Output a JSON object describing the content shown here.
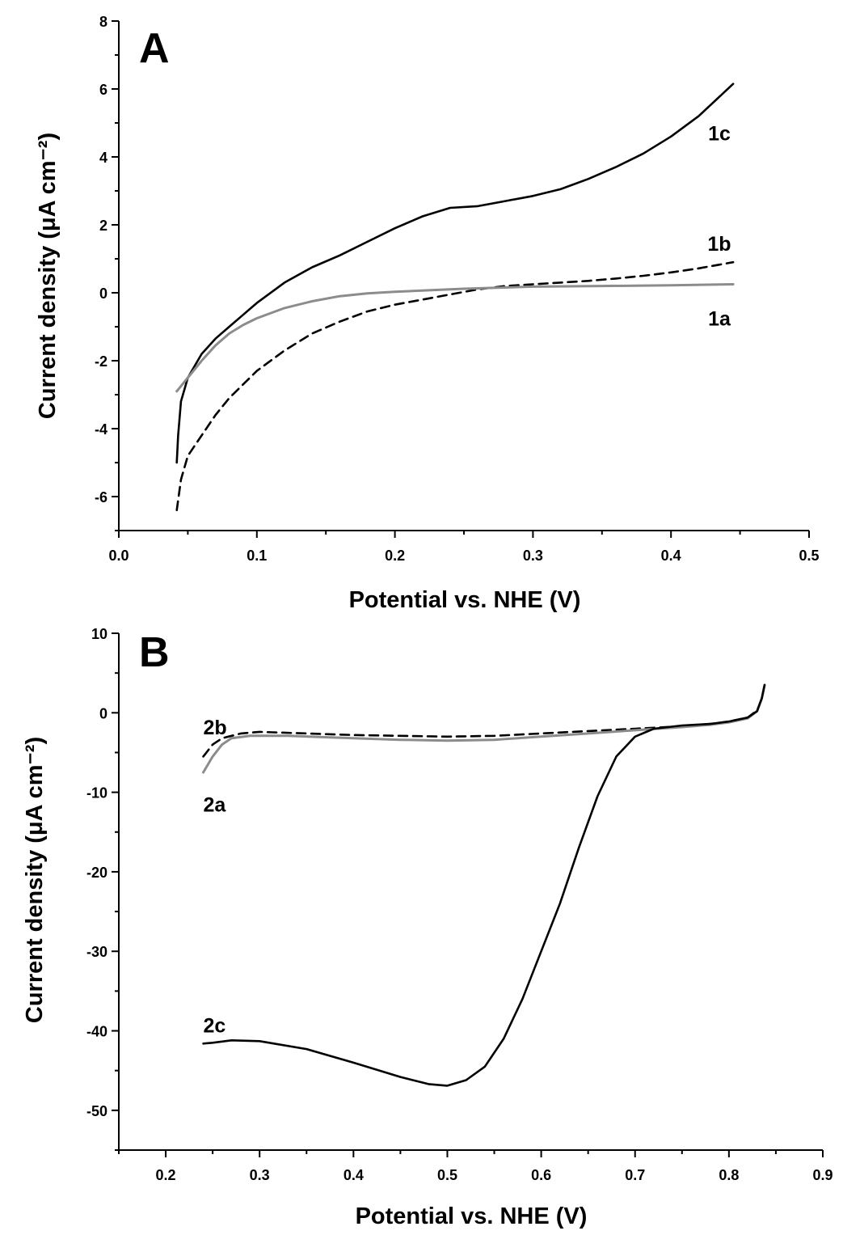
{
  "chart_data": [
    {
      "type": "line",
      "panel_label": "A",
      "xlabel": "Potential vs. NHE (V)",
      "ylabel": "Current density (μA cm⁻²)",
      "xlim": [
        0.0,
        0.5
      ],
      "ylim": [
        -7,
        8
      ],
      "xticks": [
        0.0,
        0.1,
        0.2,
        0.3,
        0.4,
        0.5
      ],
      "xtick_labels": [
        "0.0",
        "0.1",
        "0.2",
        "0.3",
        "0.4",
        "0.5"
      ],
      "yticks": [
        -6,
        -4,
        -2,
        0,
        2,
        4,
        6,
        8
      ],
      "ytick_labels": [
        "-6",
        "-4",
        "-2",
        "0",
        "2",
        "4",
        "6",
        "8"
      ],
      "grid": false,
      "series": [
        {
          "name": "1c",
          "color": "#000000",
          "style": "solid",
          "label_pos": [
            0.435,
            4.7
          ],
          "points": [
            [
              0.042,
              -5.0
            ],
            [
              0.043,
              -4.2
            ],
            [
              0.045,
              -3.2
            ],
            [
              0.05,
              -2.5
            ],
            [
              0.06,
              -1.8
            ],
            [
              0.07,
              -1.35
            ],
            [
              0.08,
              -1.0
            ],
            [
              0.09,
              -0.65
            ],
            [
              0.1,
              -0.3
            ],
            [
              0.12,
              0.3
            ],
            [
              0.14,
              0.75
            ],
            [
              0.16,
              1.1
            ],
            [
              0.18,
              1.5
            ],
            [
              0.2,
              1.9
            ],
            [
              0.22,
              2.25
            ],
            [
              0.24,
              2.5
            ],
            [
              0.26,
              2.55
            ],
            [
              0.28,
              2.7
            ],
            [
              0.3,
              2.85
            ],
            [
              0.32,
              3.05
            ],
            [
              0.34,
              3.35
            ],
            [
              0.36,
              3.7
            ],
            [
              0.38,
              4.1
            ],
            [
              0.4,
              4.6
            ],
            [
              0.42,
              5.2
            ],
            [
              0.445,
              6.15
            ]
          ]
        },
        {
          "name": "1b",
          "color": "#000000",
          "style": "dashed",
          "label_pos": [
            0.435,
            1.45
          ],
          "points": [
            [
              0.042,
              -6.4
            ],
            [
              0.045,
              -5.5
            ],
            [
              0.05,
              -4.8
            ],
            [
              0.06,
              -4.2
            ],
            [
              0.07,
              -3.6
            ],
            [
              0.08,
              -3.1
            ],
            [
              0.1,
              -2.3
            ],
            [
              0.12,
              -1.7
            ],
            [
              0.14,
              -1.2
            ],
            [
              0.16,
              -0.85
            ],
            [
              0.18,
              -0.55
            ],
            [
              0.2,
              -0.35
            ],
            [
              0.22,
              -0.2
            ],
            [
              0.24,
              -0.05
            ],
            [
              0.26,
              0.1
            ],
            [
              0.28,
              0.2
            ],
            [
              0.3,
              0.25
            ],
            [
              0.32,
              0.3
            ],
            [
              0.34,
              0.35
            ],
            [
              0.36,
              0.42
            ],
            [
              0.38,
              0.5
            ],
            [
              0.4,
              0.6
            ],
            [
              0.42,
              0.72
            ],
            [
              0.445,
              0.9
            ]
          ]
        },
        {
          "name": "1a",
          "color": "#8c8c8c",
          "style": "solid",
          "label_pos": [
            0.435,
            -0.75
          ],
          "points": [
            [
              0.042,
              -2.9
            ],
            [
              0.05,
              -2.5
            ],
            [
              0.06,
              -2.0
            ],
            [
              0.07,
              -1.55
            ],
            [
              0.08,
              -1.2
            ],
            [
              0.09,
              -0.95
            ],
            [
              0.1,
              -0.75
            ],
            [
              0.12,
              -0.45
            ],
            [
              0.14,
              -0.25
            ],
            [
              0.16,
              -0.1
            ],
            [
              0.18,
              -0.02
            ],
            [
              0.2,
              0.03
            ],
            [
              0.25,
              0.12
            ],
            [
              0.3,
              0.18
            ],
            [
              0.35,
              0.2
            ],
            [
              0.4,
              0.22
            ],
            [
              0.445,
              0.25
            ]
          ]
        }
      ]
    },
    {
      "type": "line",
      "panel_label": "B",
      "xlabel": "Potential vs. NHE (V)",
      "ylabel": "Current density (μA cm⁻²)",
      "xlim": [
        0.15,
        0.9
      ],
      "ylim": [
        -55,
        10
      ],
      "xticks": [
        0.2,
        0.3,
        0.4,
        0.5,
        0.6,
        0.7,
        0.8,
        0.9
      ],
      "xtick_labels": [
        "0.2",
        "0.3",
        "0.4",
        "0.5",
        "0.6",
        "0.7",
        "0.8",
        "0.9"
      ],
      "yticks": [
        -50,
        -40,
        -30,
        -20,
        -10,
        0,
        10
      ],
      "ytick_labels": [
        "-50",
        "-40",
        "-30",
        "-20",
        "-10",
        "0",
        "10"
      ],
      "grid": false,
      "series": [
        {
          "name": "2b",
          "color": "#000000",
          "style": "dashed",
          "label_pos": [
            0.24,
            -1.8
          ],
          "points": [
            [
              0.24,
              -5.5
            ],
            [
              0.25,
              -4.0
            ],
            [
              0.26,
              -3.2
            ],
            [
              0.28,
              -2.6
            ],
            [
              0.3,
              -2.4
            ],
            [
              0.35,
              -2.6
            ],
            [
              0.4,
              -2.8
            ],
            [
              0.45,
              -2.9
            ],
            [
              0.5,
              -3.0
            ],
            [
              0.55,
              -2.9
            ],
            [
              0.6,
              -2.6
            ],
            [
              0.65,
              -2.3
            ],
            [
              0.7,
              -2.0
            ],
            [
              0.75,
              -1.7
            ],
            [
              0.78,
              -1.4
            ],
            [
              0.8,
              -1.1
            ],
            [
              0.82,
              -0.6
            ],
            [
              0.83,
              0.3
            ],
            [
              0.835,
              1.8
            ],
            [
              0.838,
              3.5
            ]
          ]
        },
        {
          "name": "2a",
          "color": "#8c8c8c",
          "style": "solid",
          "label_pos": [
            0.24,
            -11.5
          ],
          "points": [
            [
              0.24,
              -7.5
            ],
            [
              0.25,
              -5.5
            ],
            [
              0.26,
              -4.0
            ],
            [
              0.27,
              -3.2
            ],
            [
              0.29,
              -2.9
            ],
            [
              0.33,
              -2.9
            ],
            [
              0.4,
              -3.2
            ],
            [
              0.45,
              -3.4
            ],
            [
              0.5,
              -3.5
            ],
            [
              0.55,
              -3.4
            ],
            [
              0.6,
              -3.0
            ],
            [
              0.65,
              -2.6
            ],
            [
              0.7,
              -2.2
            ],
            [
              0.75,
              -1.8
            ],
            [
              0.78,
              -1.5
            ],
            [
              0.8,
              -1.2
            ],
            [
              0.82,
              -0.7
            ],
            [
              0.83,
              0.2
            ],
            [
              0.835,
              1.8
            ],
            [
              0.838,
              3.5
            ]
          ]
        },
        {
          "name": "2c",
          "color": "#000000",
          "style": "solid",
          "label_pos": [
            0.24,
            -39.3
          ],
          "points": [
            [
              0.24,
              -41.6
            ],
            [
              0.25,
              -41.5
            ],
            [
              0.27,
              -41.2
            ],
            [
              0.3,
              -41.3
            ],
            [
              0.35,
              -42.3
            ],
            [
              0.4,
              -44.0
            ],
            [
              0.45,
              -45.8
            ],
            [
              0.48,
              -46.7
            ],
            [
              0.5,
              -46.9
            ],
            [
              0.52,
              -46.2
            ],
            [
              0.54,
              -44.5
            ],
            [
              0.56,
              -41.0
            ],
            [
              0.58,
              -36.0
            ],
            [
              0.6,
              -30.0
            ],
            [
              0.62,
              -24.0
            ],
            [
              0.64,
              -17.0
            ],
            [
              0.66,
              -10.5
            ],
            [
              0.68,
              -5.5
            ],
            [
              0.7,
              -3.0
            ],
            [
              0.72,
              -2.0
            ],
            [
              0.75,
              -1.6
            ],
            [
              0.78,
              -1.4
            ],
            [
              0.8,
              -1.1
            ],
            [
              0.82,
              -0.6
            ],
            [
              0.83,
              0.2
            ],
            [
              0.835,
              1.8
            ],
            [
              0.838,
              3.5
            ]
          ]
        }
      ]
    }
  ]
}
